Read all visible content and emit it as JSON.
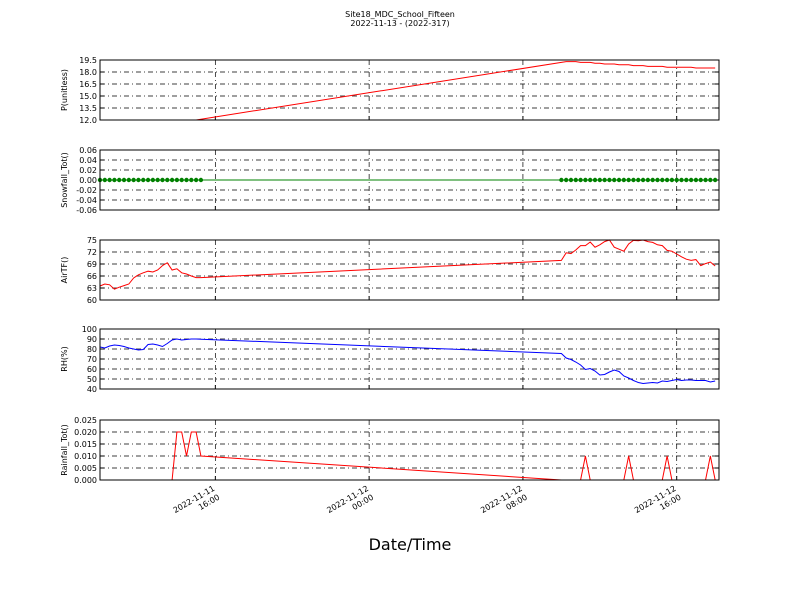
{
  "title": "Site18_MDC_School_Fifteen",
  "subtitle": "2022-11-13 - (2022-317)",
  "x_label": "Date/Time",
  "xlim": [
    "2022-11-11 10:00",
    "2022-11-12 18:12"
  ],
  "xticks": [
    "2022-11-11 16:00",
    "2022-11-12 00:00",
    "2022-11-12 08:00",
    "2022-11-12 16:00"
  ],
  "x": [
    "2022-11-11 10:00",
    "2022-11-11 10:15",
    "2022-11-11 10:30",
    "2022-11-11 10:45",
    "2022-11-11 11:00",
    "2022-11-11 11:15",
    "2022-11-11 11:30",
    "2022-11-11 11:45",
    "2022-11-11 12:00",
    "2022-11-11 12:15",
    "2022-11-11 12:30",
    "2022-11-11 12:45",
    "2022-11-11 13:00",
    "2022-11-11 13:15",
    "2022-11-11 13:30",
    "2022-11-11 13:45",
    "2022-11-11 14:00",
    "2022-11-11 14:15",
    "2022-11-11 14:30",
    "2022-11-11 14:45",
    "2022-11-11 15:00",
    "2022-11-11 15:15",
    "2022-11-12 10:00",
    "2022-11-12 10:15",
    "2022-11-12 10:30",
    "2022-11-12 10:45",
    "2022-11-12 11:00",
    "2022-11-12 11:15",
    "2022-11-12 11:30",
    "2022-11-12 11:45",
    "2022-11-12 12:00",
    "2022-11-12 12:15",
    "2022-11-12 12:30",
    "2022-11-12 12:45",
    "2022-11-12 13:00",
    "2022-11-12 13:15",
    "2022-11-12 13:30",
    "2022-11-12 13:45",
    "2022-11-12 14:00",
    "2022-11-12 14:15",
    "2022-11-12 14:30",
    "2022-11-12 14:45",
    "2022-11-12 15:00",
    "2022-11-12 15:15",
    "2022-11-12 15:30",
    "2022-11-12 15:45",
    "2022-11-12 16:00",
    "2022-11-12 16:15",
    "2022-11-12 16:30",
    "2022-11-12 16:45",
    "2022-11-12 17:00",
    "2022-11-12 17:15",
    "2022-11-12 17:30",
    "2022-11-12 17:45",
    "2022-11-12 18:00"
  ],
  "chart_data": [
    {
      "type": "line",
      "y_label": "P(unitless)",
      "grid": true,
      "ylim": [
        12,
        19.5
      ],
      "yticks": [
        {
          "value": 12,
          "label": "12.0"
        },
        {
          "value": 13.5,
          "label": "13.5"
        },
        {
          "value": 15,
          "label": "15.0"
        },
        {
          "value": 16.5,
          "label": "16.5"
        },
        {
          "value": 18,
          "label": "18.0"
        },
        {
          "value": 19.5,
          "label": "19.5"
        }
      ],
      "series": [
        {
          "color": "#ff0000",
          "marker": false,
          "values": [
            12.0,
            12.0,
            12.0,
            12.0,
            12.0,
            12.0,
            12.0,
            12.0,
            12.0,
            12.0,
            12.0,
            12.0,
            12.0,
            12.0,
            12.0,
            12.0,
            12.0,
            12.0,
            12.0,
            12.0,
            12.0,
            12.1,
            19.2,
            19.3,
            19.3,
            19.3,
            19.2,
            19.2,
            19.2,
            19.1,
            19.1,
            19.0,
            19.0,
            19.0,
            18.9,
            18.9,
            18.9,
            18.8,
            18.8,
            18.8,
            18.7,
            18.7,
            18.7,
            18.7,
            18.6,
            18.6,
            18.6,
            18.6,
            18.6,
            18.6,
            18.5,
            18.5,
            18.5,
            18.5,
            18.5
          ]
        }
      ]
    },
    {
      "type": "line",
      "y_label": "Snowfall_Tot()",
      "grid": true,
      "ylim": [
        -0.06,
        0.06
      ],
      "yticks": [
        -0.06,
        -0.04,
        -0.02,
        {
          "value": 0,
          "label": "0.00"
        },
        0.02,
        0.04,
        0.06
      ],
      "series": [
        {
          "color": "#008000",
          "marker": true,
          "values": [
            0,
            0,
            0,
            0,
            0,
            0,
            0,
            0,
            0,
            0,
            0,
            0,
            0,
            0,
            0,
            0,
            0,
            0,
            0,
            0,
            0,
            0,
            0,
            0,
            0,
            0,
            0,
            0,
            0,
            0,
            0,
            0,
            0,
            0,
            0,
            0,
            0,
            0,
            0,
            0,
            0,
            0,
            0,
            0,
            0,
            0,
            0,
            0,
            0,
            0,
            0,
            0,
            0,
            0,
            0
          ]
        }
      ]
    },
    {
      "type": "line",
      "y_label": "AirTF()",
      "grid": true,
      "ylim": [
        60,
        75
      ],
      "yticks": [
        60,
        63,
        66,
        69,
        72,
        75
      ],
      "series": [
        {
          "color": "#ff0000",
          "marker": false,
          "values": [
            63.5,
            64.0,
            63.8,
            62.7,
            63.2,
            63.6,
            64.0,
            65.5,
            66.3,
            66.8,
            67.2,
            67.0,
            67.5,
            68.6,
            69.3,
            67.5,
            67.8,
            66.8,
            66.5,
            66.0,
            65.6,
            65.6,
            69.9,
            71.8,
            71.6,
            72.5,
            73.6,
            73.6,
            74.5,
            73.2,
            73.8,
            74.6,
            75.0,
            73.2,
            72.7,
            72.2,
            74.0,
            74.9,
            74.8,
            75.0,
            74.6,
            74.4,
            73.8,
            73.6,
            72.4,
            72.2,
            71.5,
            70.8,
            70.2,
            69.9,
            70.1,
            68.6,
            69.1,
            69.5,
            68.5
          ]
        }
      ]
    },
    {
      "type": "line",
      "y_label": "RH(%)",
      "grid": true,
      "ylim": [
        40,
        100
      ],
      "yticks": [
        40,
        50,
        60,
        70,
        80,
        90,
        100
      ],
      "series": [
        {
          "color": "#0000ff",
          "marker": false,
          "values": [
            82,
            81,
            83,
            84,
            83.5,
            82.5,
            81,
            80,
            79,
            79.5,
            84.5,
            85,
            84,
            82.5,
            85.5,
            89,
            90,
            89,
            89.5,
            90,
            90,
            89.8,
            75.5,
            71,
            69.5,
            67,
            64,
            59.5,
            60.5,
            58,
            54,
            54.5,
            57,
            59,
            57.5,
            53,
            51,
            48.5,
            46.5,
            45.5,
            46,
            46.5,
            46,
            48,
            47.5,
            48.5,
            49.5,
            48.5,
            49,
            49,
            48.5,
            48.5,
            48.5,
            47,
            48
          ]
        }
      ]
    },
    {
      "type": "line",
      "y_label": "Rainfall_Tot()",
      "grid": true,
      "ylim": [
        0,
        0.025
      ],
      "yticks": [
        {
          "value": 0,
          "label": "0.000"
        },
        0.005,
        {
          "value": 0.01,
          "label": "0.010"
        },
        0.015,
        {
          "value": 0.02,
          "label": "0.020"
        },
        0.025
      ],
      "series": [
        {
          "color": "#ff0000",
          "marker": false,
          "values": [
            0,
            0,
            0,
            0,
            0,
            0,
            0,
            0,
            0,
            0,
            0,
            0,
            0,
            0,
            0,
            0,
            0.02,
            0.02,
            0.01,
            0.02,
            0.02,
            0.01,
            0,
            0,
            0,
            0,
            0,
            0.01,
            0,
            0,
            0,
            0,
            0,
            0,
            0,
            0,
            0.01,
            0,
            0,
            0,
            0,
            0,
            0,
            0,
            0.01,
            0,
            0,
            0,
            0,
            0,
            0,
            0,
            0,
            0.01,
            0
          ]
        }
      ]
    }
  ]
}
